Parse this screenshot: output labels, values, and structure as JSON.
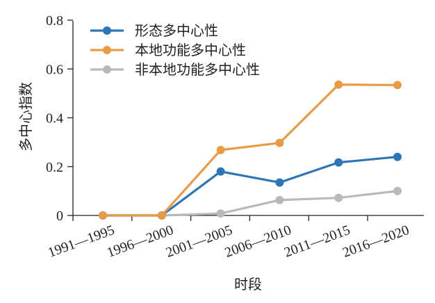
{
  "chart_data": {
    "type": "line",
    "xlabel": "时段",
    "ylabel": "多中心指数",
    "categories": [
      "1991—1995",
      "1996—2000",
      "2001—2005",
      "2006—2010",
      "2011—2015",
      "2016—2020"
    ],
    "ylim": [
      0,
      0.8
    ],
    "yticks": [
      0,
      0.2,
      0.4,
      0.6,
      0.8
    ],
    "ytick_labels": [
      "0",
      "0.2",
      "0.4",
      "0.6",
      "0.8"
    ],
    "grid": false,
    "legend_position": "top-left",
    "series": [
      {
        "name": "形态多中心性",
        "color": "#2e75b6",
        "values": [
          0,
          0,
          0.18,
          0.135,
          0.217,
          0.24
        ]
      },
      {
        "name": "本地功能多中心性",
        "color": "#e89b45",
        "values": [
          0,
          0,
          0.268,
          0.297,
          0.536,
          0.534
        ]
      },
      {
        "name": "非本地功能多中心性",
        "color": "#b8b9bd",
        "values": [
          0,
          0,
          0.008,
          0.063,
          0.072,
          0.1
        ]
      }
    ]
  }
}
